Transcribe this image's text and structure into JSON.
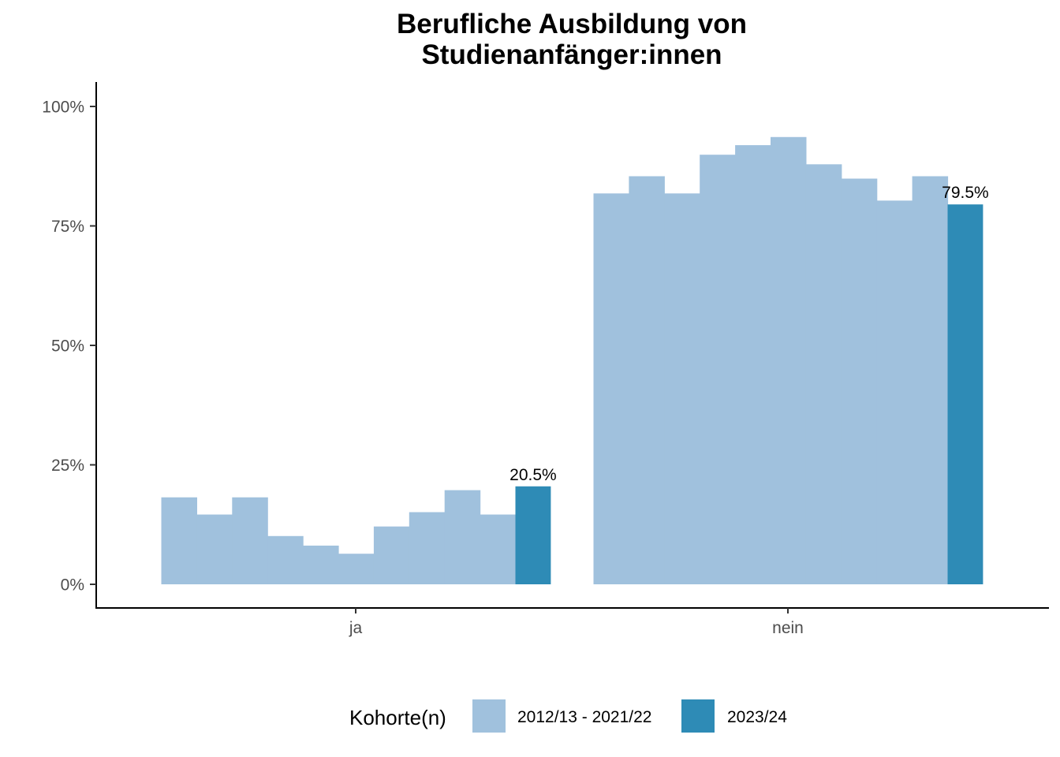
{
  "chart_data": {
    "type": "bar",
    "title_lines": [
      "Berufliche Ausbildung von",
      "Studienanfänger:innen"
    ],
    "categories": [
      "ja",
      "nein"
    ],
    "ylim": [
      -0.05,
      1.05
    ],
    "yticks": [
      0,
      0.25,
      0.5,
      0.75,
      1.0
    ],
    "ytick_labels": [
      "0%",
      "25%",
      "50%",
      "75%",
      "100%"
    ],
    "grid": false,
    "series": [
      {
        "name": "2012/13 - 2021/22",
        "color": "#a0c1dd",
        "values": {
          "ja": [
            0.182,
            0.146,
            0.182,
            0.101,
            0.081,
            0.064,
            0.121,
            0.151,
            0.197,
            0.146
          ],
          "nein": [
            0.818,
            0.854,
            0.818,
            0.899,
            0.919,
            0.936,
            0.879,
            0.849,
            0.803,
            0.854
          ]
        }
      },
      {
        "name": "2023/24",
        "color": "#2e8bb6",
        "values": {
          "ja": 0.205,
          "nein": 0.795
        },
        "labels": {
          "ja": "20.5%",
          "nein": "79.5%"
        }
      }
    ],
    "legend": {
      "title": "Kohorte(n)",
      "position": "bottom",
      "items": [
        {
          "label": "2012/13 - 2021/22",
          "color": "#a0c1dd"
        },
        {
          "label": "2023/24",
          "color": "#2e8bb6"
        }
      ]
    }
  }
}
